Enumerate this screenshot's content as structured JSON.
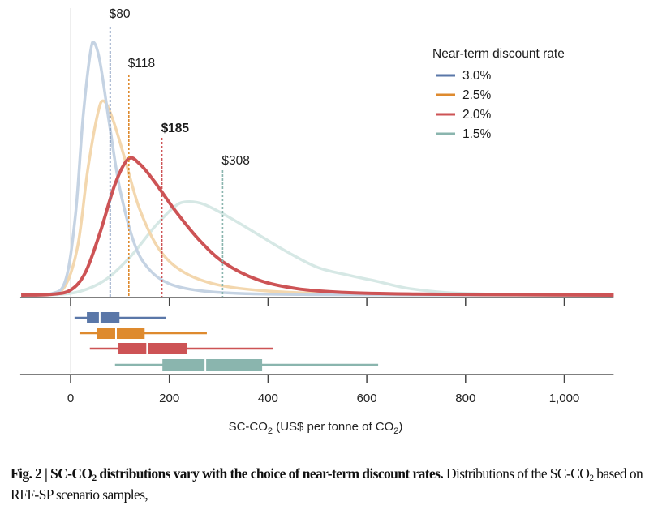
{
  "chart_data": {
    "type": "line",
    "subtype": "density-with-boxplots",
    "title": "",
    "xlabel_parts": {
      "pre": "SC-CO",
      "sub1": "2",
      "mid": " (US$ per tonne of CO",
      "sub2": "2",
      "post": ")"
    },
    "xlabel": "SC-CO2 (US$ per tonne of CO2)",
    "ylabel": "",
    "xlim": [
      -102,
      1100
    ],
    "x_ticks": [
      0,
      200,
      400,
      600,
      800,
      1000
    ],
    "x_tick_labels": [
      "0",
      "200",
      "400",
      "600",
      "800",
      "1,000"
    ],
    "grid": false,
    "legend": {
      "title": "Near-term discount rate",
      "placement": "top-right"
    },
    "series": [
      {
        "name": "3.0%",
        "color": "#5a77a8",
        "curve_color": "#c5d3e3",
        "mean": 80,
        "mean_label": "$80",
        "mean_bold": false,
        "density_peak_x": 46,
        "density_peak_rel": 1.0,
        "density": [
          [
            -100,
            0
          ],
          [
            -40,
            0.005
          ],
          [
            -10,
            0.06
          ],
          [
            10,
            0.32
          ],
          [
            25,
            0.7
          ],
          [
            40,
            0.96
          ],
          [
            48,
            1.0
          ],
          [
            60,
            0.92
          ],
          [
            80,
            0.66
          ],
          [
            100,
            0.42
          ],
          [
            130,
            0.2
          ],
          [
            160,
            0.1
          ],
          [
            200,
            0.045
          ],
          [
            260,
            0.018
          ],
          [
            350,
            0.006
          ],
          [
            500,
            0.002
          ],
          [
            700,
            0.0005
          ],
          [
            1100,
            0
          ]
        ],
        "box": {
          "whisker_low": 8,
          "q1": 33,
          "median": 59,
          "q3": 99,
          "whisker_high": 193
        }
      },
      {
        "name": "2.5%",
        "color": "#de8a2e",
        "curve_color": "#f3d7ae",
        "mean": 118,
        "mean_label": "$118",
        "mean_bold": false,
        "density_peak_x": 67,
        "density_peak_rel": 0.77,
        "density": [
          [
            -100,
            0
          ],
          [
            -40,
            0.004
          ],
          [
            -10,
            0.04
          ],
          [
            15,
            0.2
          ],
          [
            35,
            0.5
          ],
          [
            55,
            0.72
          ],
          [
            67,
            0.77
          ],
          [
            85,
            0.7
          ],
          [
            110,
            0.54
          ],
          [
            140,
            0.34
          ],
          [
            180,
            0.18
          ],
          [
            230,
            0.09
          ],
          [
            300,
            0.04
          ],
          [
            400,
            0.016
          ],
          [
            550,
            0.005
          ],
          [
            800,
            0.001
          ],
          [
            1100,
            0
          ]
        ],
        "box": {
          "whisker_low": 18,
          "q1": 54,
          "median": 92,
          "q3": 150,
          "whisker_high": 276
        }
      },
      {
        "name": "2.0%",
        "color": "#cd5355",
        "curve_color": "#cd5355",
        "mean": 185,
        "mean_label": "$185",
        "mean_bold": true,
        "density_peak_x": 117,
        "density_peak_rel": 0.54,
        "density": [
          [
            -100,
            0
          ],
          [
            -40,
            0.003
          ],
          [
            0,
            0.02
          ],
          [
            30,
            0.09
          ],
          [
            60,
            0.25
          ],
          [
            90,
            0.44
          ],
          [
            117,
            0.54
          ],
          [
            140,
            0.52
          ],
          [
            170,
            0.45
          ],
          [
            210,
            0.34
          ],
          [
            260,
            0.22
          ],
          [
            310,
            0.13
          ],
          [
            380,
            0.06
          ],
          [
            460,
            0.025
          ],
          [
            560,
            0.01
          ],
          [
            700,
            0.004
          ],
          [
            900,
            0.0015
          ],
          [
            1100,
            0
          ]
        ],
        "box": {
          "whisker_low": 39,
          "q1": 97,
          "median": 155,
          "q3": 235,
          "whisker_high": 410
        }
      },
      {
        "name": "1.5%",
        "color": "#8ab5ae",
        "curve_color": "#d6e8e5",
        "mean": 308,
        "mean_label": "$308",
        "mean_bold": false,
        "density_peak_x": 227,
        "density_peak_rel": 0.37,
        "density": [
          [
            -100,
            0
          ],
          [
            -30,
            0.002
          ],
          [
            20,
            0.015
          ],
          [
            70,
            0.06
          ],
          [
            120,
            0.15
          ],
          [
            170,
            0.27
          ],
          [
            210,
            0.35
          ],
          [
            235,
            0.37
          ],
          [
            270,
            0.36
          ],
          [
            320,
            0.31
          ],
          [
            380,
            0.24
          ],
          [
            440,
            0.17
          ],
          [
            500,
            0.11
          ],
          [
            560,
            0.08
          ],
          [
            620,
            0.055
          ],
          [
            680,
            0.028
          ],
          [
            760,
            0.01
          ],
          [
            850,
            0.004
          ],
          [
            1000,
            0.001
          ],
          [
            1100,
            0
          ]
        ],
        "box": {
          "whisker_low": 90,
          "q1": 186,
          "median": 273,
          "q3": 388,
          "whisker_high": 623
        }
      }
    ]
  },
  "caption": {
    "fig_label": "Fig. 2 | ",
    "title_pre": "SC-CO",
    "title_sub": "2",
    "title_post": " distributions vary with the choice of near-term discount rates.",
    "body_pre": " Distributions of the SC-CO",
    "body_sub": "2",
    "body_post": " based on RFF-SP scenario samples,"
  }
}
